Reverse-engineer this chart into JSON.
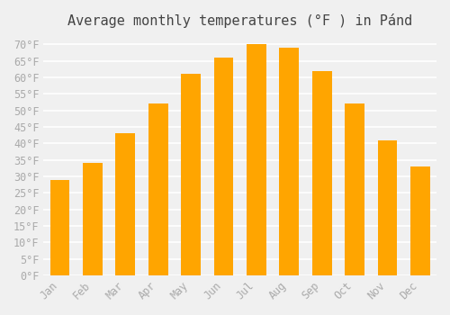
{
  "title": "Average monthly temperatures (°F ) in Pánd",
  "months": [
    "Jan",
    "Feb",
    "Mar",
    "Apr",
    "May",
    "Jun",
    "Jul",
    "Aug",
    "Sep",
    "Oct",
    "Nov",
    "Dec"
  ],
  "values": [
    29,
    34,
    43,
    52,
    61,
    66,
    70,
    69,
    62,
    52,
    41,
    33
  ],
  "bar_color": "#FFA500",
  "bar_edge_color": "#FFB733",
  "ylim": [
    0,
    72
  ],
  "yticks": [
    0,
    5,
    10,
    15,
    20,
    25,
    30,
    35,
    40,
    45,
    50,
    55,
    60,
    65,
    70
  ],
  "background_color": "#f0f0f0",
  "grid_color": "#ffffff",
  "title_fontsize": 11,
  "tick_fontsize": 8.5,
  "font_family": "monospace"
}
